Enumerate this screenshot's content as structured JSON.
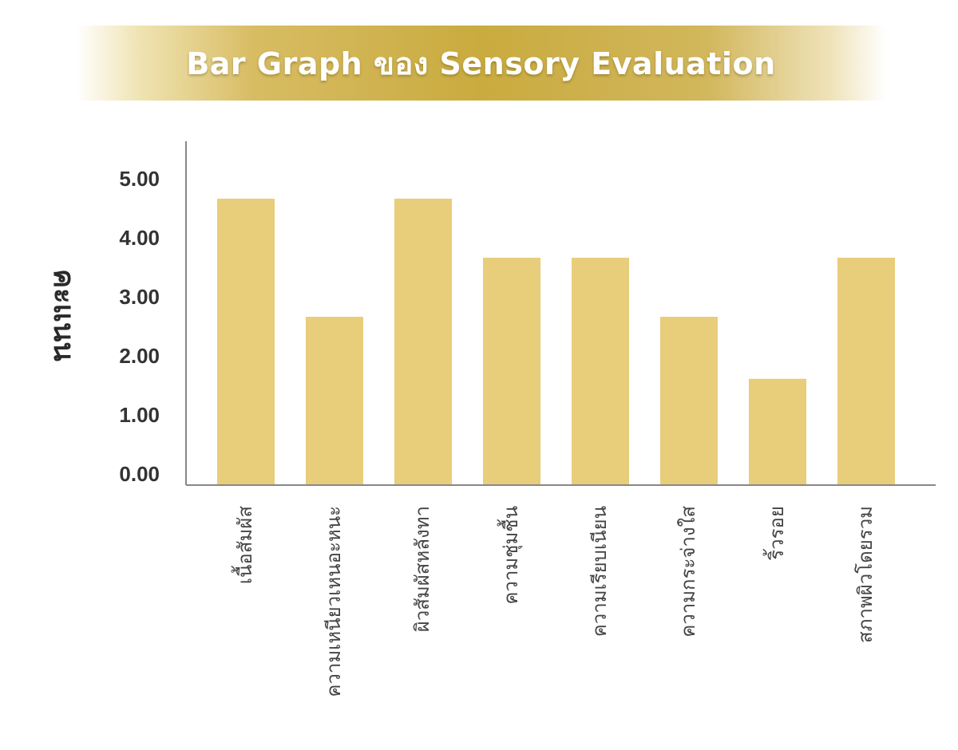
{
  "chart_data": {
    "type": "bar",
    "title": "Bar Graph ของ Sensory Evaluation",
    "ylabel": "คะแนน",
    "xlabel": "",
    "categories": [
      "เนื้อสัมผัส",
      "ความเหนียวเหนอะหนะ",
      "ผิวสัมผัสหลังทา",
      "ความชุ่มชื้น",
      "ความเรียบเนียน",
      "ความกระจ่างใส",
      "ริ้วรอย",
      "สภาพผิวโดยรวม"
    ],
    "values": [
      4.85,
      2.85,
      4.85,
      3.85,
      3.85,
      2.85,
      1.8,
      3.85
    ],
    "yticks": [
      "0.00",
      "1.00",
      "2.00",
      "3.00",
      "4.00",
      "5.00"
    ],
    "ylim": [
      0,
      5.4
    ],
    "grid": false,
    "colors": {
      "bar": "#e8cd7a",
      "axis": "#888888",
      "title_banner": "#c9ab3f"
    }
  }
}
